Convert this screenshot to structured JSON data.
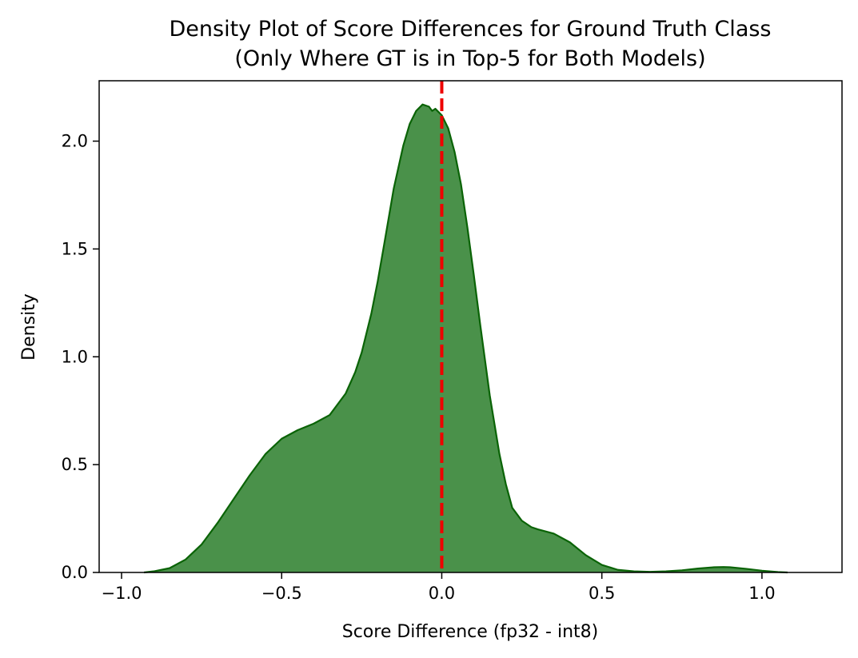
{
  "chart_data": {
    "type": "area",
    "title": "Density Plot of Score Differences for Ground Truth Class",
    "subtitle": "(Only Where GT is in Top-5 for Both Models)",
    "xlabel": "Score Difference (fp32 - int8)",
    "ylabel": "Density",
    "xlim": [
      -1.07,
      1.25
    ],
    "ylim": [
      0,
      2.28
    ],
    "xticks": [
      -1.0,
      -0.5,
      0.0,
      0.5,
      1.0
    ],
    "xtick_labels": [
      "−1.0",
      "−0.5",
      "0.0",
      "0.5",
      "1.0"
    ],
    "yticks": [
      0.0,
      0.5,
      1.0,
      1.5,
      2.0
    ],
    "ytick_labels": [
      "0.0",
      "0.5",
      "1.0",
      "1.5",
      "2.0"
    ],
    "grid": false,
    "series": [
      {
        "fill_color": "#4a914a",
        "line_color": "#0a6306",
        "x": [
          -0.93,
          -0.9,
          -0.85,
          -0.8,
          -0.75,
          -0.7,
          -0.65,
          -0.6,
          -0.55,
          -0.5,
          -0.45,
          -0.4,
          -0.35,
          -0.3,
          -0.27,
          -0.25,
          -0.22,
          -0.2,
          -0.18,
          -0.15,
          -0.12,
          -0.1,
          -0.08,
          -0.06,
          -0.04,
          -0.03,
          -0.02,
          0.0,
          0.02,
          0.04,
          0.06,
          0.08,
          0.1,
          0.12,
          0.15,
          0.18,
          0.2,
          0.22,
          0.25,
          0.28,
          0.3,
          0.35,
          0.4,
          0.45,
          0.5,
          0.55,
          0.6,
          0.65,
          0.7,
          0.75,
          0.8,
          0.85,
          0.88,
          0.9,
          0.95,
          1.0,
          1.05,
          1.08
        ],
        "y": [
          0.0,
          0.005,
          0.02,
          0.06,
          0.13,
          0.23,
          0.34,
          0.45,
          0.55,
          0.62,
          0.66,
          0.69,
          0.73,
          0.83,
          0.93,
          1.02,
          1.2,
          1.35,
          1.52,
          1.78,
          1.98,
          2.08,
          2.14,
          2.17,
          2.16,
          2.14,
          2.15,
          2.12,
          2.06,
          1.95,
          1.8,
          1.6,
          1.38,
          1.15,
          0.82,
          0.55,
          0.41,
          0.3,
          0.24,
          0.21,
          0.2,
          0.18,
          0.14,
          0.08,
          0.035,
          0.012,
          0.005,
          0.003,
          0.005,
          0.01,
          0.018,
          0.024,
          0.025,
          0.024,
          0.017,
          0.008,
          0.002,
          0.0
        ]
      }
    ],
    "annotations": [
      {
        "type": "vline",
        "x": 0.0,
        "color": "#ee0000",
        "style": "dashed"
      }
    ]
  }
}
